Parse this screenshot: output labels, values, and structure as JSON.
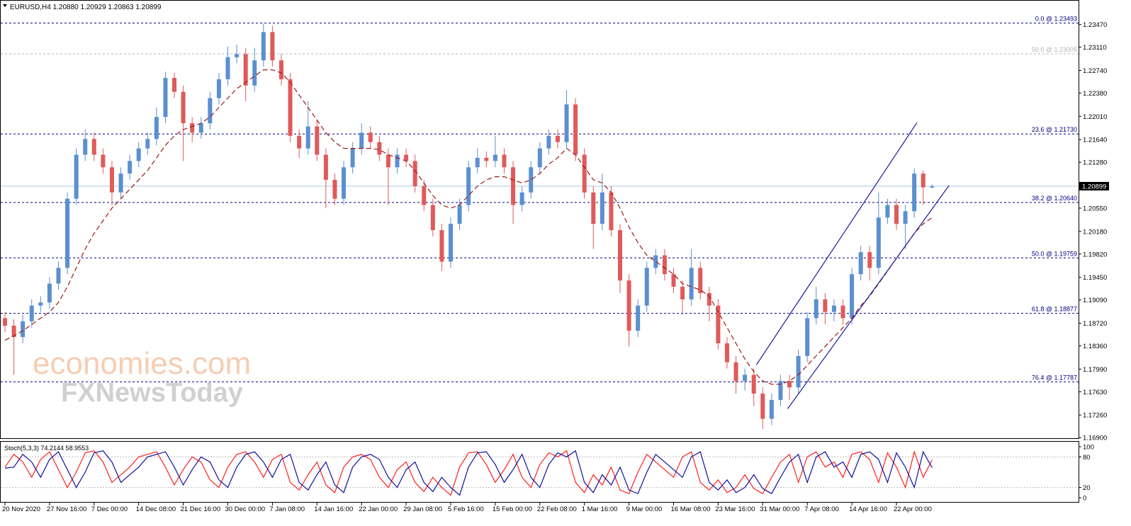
{
  "chart_data": [
    {
      "type": "candlestick",
      "title": "EURUSD,H4  1.20880 1.20929 1.20863 1.20899",
      "categories": [
        "20 Nov 2020",
        null,
        null,
        null,
        null,
        "27 Nov 16:00",
        null,
        null,
        null,
        null,
        "7 Dec 00:00",
        null,
        null,
        null,
        null,
        "14 Dec 08:00",
        null,
        null,
        null,
        null,
        "21 Dec 16:00",
        null,
        null,
        null,
        null,
        "30 Dec 00:00",
        null,
        null,
        null,
        null,
        "7 Jan 08:00",
        null,
        null,
        null,
        null,
        "14 Jan 16:00",
        null,
        null,
        null,
        null,
        "22 Jan 00:00",
        null,
        null,
        null,
        null,
        "29 Jan 08:00",
        null,
        null,
        null,
        null,
        "5 Feb 16:00",
        null,
        null,
        null,
        null,
        "15 Feb 00:00",
        null,
        null,
        null,
        null,
        "22 Feb 08:00",
        null,
        null,
        null,
        null,
        "1 Mar 16:00",
        null,
        null,
        null,
        null,
        "9 Mar 00:00",
        null,
        null,
        null,
        null,
        "16 Mar 08:00",
        null,
        null,
        null,
        null,
        "23 Mar 16:00",
        null,
        null,
        null,
        null,
        "31 Mar 00:00",
        null,
        null,
        null,
        null,
        "7 Apr 08:00",
        null,
        null,
        null,
        null,
        "14 Apr 16:00",
        null,
        null,
        null,
        null,
        "22 Apr 00:00",
        null,
        null,
        null,
        null
      ],
      "open": [
        1.188,
        1.1868,
        1.185,
        1.1875,
        1.19,
        1.1905,
        1.1935,
        1.196,
        1.207,
        1.214,
        1.2165,
        1.214,
        1.212,
        1.208,
        1.211,
        1.213,
        1.215,
        1.2165,
        1.22,
        1.2262,
        1.224,
        1.219,
        1.2175,
        1.219,
        1.223,
        1.226,
        1.2295,
        1.23,
        1.225,
        1.229,
        1.2335,
        1.229,
        1.226,
        1.217,
        1.215,
        1.2185,
        1.214,
        1.21,
        1.207,
        1.212,
        1.215,
        1.2175,
        1.216,
        1.214,
        1.212,
        1.214,
        1.213,
        1.209,
        1.206,
        1.202,
        1.197,
        1.203,
        1.206,
        1.212,
        1.2135,
        1.213,
        1.214,
        1.212,
        1.206,
        1.208,
        1.212,
        1.215,
        1.217,
        1.216,
        1.222,
        1.214,
        1.208,
        1.203,
        1.208,
        1.202,
        1.194,
        1.186,
        1.19,
        1.196,
        1.198,
        1.195,
        1.193,
        1.191,
        1.196,
        1.192,
        1.19,
        1.184,
        1.181,
        1.178,
        1.179,
        1.176,
        1.172,
        1.175,
        1.178,
        1.177,
        1.182,
        1.188,
        1.191,
        1.189,
        1.19,
        1.188,
        1.195,
        1.1985,
        1.196,
        1.204,
        1.206,
        1.203,
        1.205,
        1.211,
        1.2088
      ],
      "high": [
        1.189,
        1.1878,
        1.1885,
        1.191,
        1.1915,
        1.1945,
        1.197,
        1.208,
        1.215,
        1.218,
        1.2175,
        1.215,
        1.213,
        1.212,
        1.214,
        1.216,
        1.2175,
        1.2215,
        1.2272,
        1.227,
        1.225,
        1.22,
        1.22,
        1.224,
        1.227,
        1.2312,
        1.2315,
        1.231,
        1.231,
        1.2349,
        1.2345,
        1.23,
        1.227,
        1.218,
        1.2225,
        1.2195,
        1.215,
        1.211,
        1.213,
        1.216,
        1.219,
        1.2185,
        1.217,
        1.215,
        1.215,
        1.215,
        1.214,
        1.21,
        1.207,
        1.203,
        1.204,
        1.207,
        1.213,
        1.215,
        1.2145,
        1.217,
        1.215,
        1.213,
        1.209,
        1.213,
        1.216,
        1.218,
        1.218,
        1.2243,
        1.223,
        1.215,
        1.209,
        1.211,
        1.209,
        1.203,
        1.195,
        1.191,
        1.197,
        1.199,
        1.199,
        1.196,
        1.194,
        1.199,
        1.197,
        1.193,
        1.191,
        1.185,
        1.182,
        1.18,
        1.18,
        1.177,
        1.176,
        1.179,
        1.179,
        1.183,
        1.189,
        1.193,
        1.192,
        1.191,
        1.191,
        1.196,
        1.1995,
        1.1995,
        1.208,
        1.207,
        1.207,
        1.206,
        1.2118,
        1.2115,
        1.20929
      ],
      "low": [
        1.1858,
        1.179,
        1.184,
        1.1865,
        1.189,
        1.1895,
        1.1925,
        1.195,
        1.206,
        1.213,
        1.213,
        1.211,
        1.206,
        1.207,
        1.21,
        1.212,
        1.214,
        1.2155,
        1.219,
        1.223,
        1.213,
        1.216,
        1.2165,
        1.218,
        1.222,
        1.225,
        1.2285,
        1.2225,
        1.224,
        1.228,
        1.228,
        1.225,
        1.216,
        1.2135,
        1.214,
        1.213,
        1.2055,
        1.206,
        1.206,
        1.211,
        1.214,
        1.215,
        1.213,
        1.206,
        1.211,
        1.212,
        1.208,
        1.205,
        1.201,
        1.1955,
        1.196,
        1.202,
        1.205,
        1.211,
        1.212,
        1.212,
        1.211,
        1.203,
        1.205,
        1.207,
        1.211,
        1.214,
        1.215,
        1.215,
        1.213,
        1.207,
        1.199,
        1.202,
        1.201,
        1.192,
        1.1835,
        1.185,
        1.189,
        1.195,
        1.194,
        1.192,
        1.1885,
        1.19,
        1.191,
        1.1875,
        1.183,
        1.18,
        1.176,
        1.1765,
        1.174,
        1.1704,
        1.171,
        1.174,
        1.175,
        1.176,
        1.181,
        1.187,
        1.187,
        1.1875,
        1.187,
        1.187,
        1.194,
        1.194,
        1.195,
        1.203,
        1.202,
        1.199,
        1.204,
        1.206,
        1.20863
      ],
      "close": [
        1.1868,
        1.185,
        1.1875,
        1.19,
        1.1905,
        1.1935,
        1.196,
        1.207,
        1.214,
        1.2165,
        1.214,
        1.212,
        1.208,
        1.211,
        1.213,
        1.215,
        1.2165,
        1.22,
        1.2262,
        1.224,
        1.219,
        1.2175,
        1.219,
        1.223,
        1.226,
        1.2295,
        1.23,
        1.225,
        1.229,
        1.2335,
        1.229,
        1.226,
        1.217,
        1.215,
        1.2185,
        1.214,
        1.21,
        1.207,
        1.212,
        1.215,
        1.2175,
        1.216,
        1.214,
        1.212,
        1.214,
        1.213,
        1.209,
        1.206,
        1.202,
        1.197,
        1.203,
        1.206,
        1.212,
        1.2135,
        1.213,
        1.214,
        1.212,
        1.206,
        1.208,
        1.212,
        1.215,
        1.217,
        1.216,
        1.222,
        1.214,
        1.208,
        1.203,
        1.208,
        1.202,
        1.194,
        1.186,
        1.19,
        1.196,
        1.198,
        1.195,
        1.193,
        1.191,
        1.196,
        1.192,
        1.19,
        1.184,
        1.181,
        1.178,
        1.179,
        1.176,
        1.172,
        1.175,
        1.178,
        1.177,
        1.182,
        1.188,
        1.191,
        1.189,
        1.19,
        1.188,
        1.195,
        1.1985,
        1.196,
        1.204,
        1.206,
        1.203,
        1.205,
        1.211,
        1.2088,
        1.20899
      ],
      "up_color": "#5b8fd0",
      "down_color": "#e05a5a",
      "ma": {
        "color": "#9b1c1c",
        "values": [
          1.1845,
          1.1852,
          1.186,
          1.187,
          1.188,
          1.189,
          1.1905,
          1.193,
          1.196,
          1.199,
          1.2015,
          1.2035,
          1.2055,
          1.207,
          1.2085,
          1.21,
          1.2115,
          1.2135,
          1.2155,
          1.217,
          1.218,
          1.2185,
          1.219,
          1.22,
          1.2215,
          1.223,
          1.2245,
          1.2255,
          1.2265,
          1.2275,
          1.2275,
          1.227,
          1.2255,
          1.2235,
          1.2215,
          1.2195,
          1.2175,
          1.216,
          1.215,
          1.215,
          1.215,
          1.215,
          1.2148,
          1.214,
          1.2135,
          1.213,
          1.2115,
          1.2095,
          1.2075,
          1.206,
          1.2055,
          1.206,
          1.2075,
          1.209,
          1.21,
          1.2105,
          1.2105,
          1.21,
          1.2095,
          1.21,
          1.211,
          1.2125,
          1.2135,
          1.215,
          1.214,
          1.212,
          1.21,
          1.2095,
          1.208,
          1.2055,
          1.2025,
          1.2,
          1.198,
          1.197,
          1.196,
          1.195,
          1.1935,
          1.193,
          1.1925,
          1.1915,
          1.189,
          1.1865,
          1.184,
          1.1815,
          1.1795,
          1.178,
          1.1775,
          1.1775,
          1.178,
          1.179,
          1.1805,
          1.182,
          1.1835,
          1.185,
          1.1865,
          1.188,
          1.19,
          1.1915,
          1.1935,
          1.1955,
          1.1975,
          1.1995,
          1.2015,
          1.203,
          1.204
        ]
      },
      "ylim": [
        1.1688,
        1.2386
      ],
      "yticks": [
        {
          "value": 1.2347,
          "label": "1.23470"
        },
        {
          "value": 1.2311,
          "label": "1.23110"
        },
        {
          "value": 1.2274,
          "label": "1.22740"
        },
        {
          "value": 1.2238,
          "label": "1.22380"
        },
        {
          "value": 1.2201,
          "label": "1.22010"
        },
        {
          "value": 1.2164,
          "label": "1.21640"
        },
        {
          "value": 1.2128,
          "label": "1.21280"
        },
        {
          "value": 1.2055,
          "label": "1.20550"
        },
        {
          "value": 1.2018,
          "label": "1.20180"
        },
        {
          "value": 1.1982,
          "label": "1.19820"
        },
        {
          "value": 1.1945,
          "label": "1.19450"
        },
        {
          "value": 1.1909,
          "label": "1.19090"
        },
        {
          "value": 1.1872,
          "label": "1.18720"
        },
        {
          "value": 1.1836,
          "label": "1.18360"
        },
        {
          "value": 1.1799,
          "label": "1.17990"
        },
        {
          "value": 1.1763,
          "label": "1.17630"
        },
        {
          "value": 1.1726,
          "label": "1.17260"
        },
        {
          "value": 1.169,
          "label": "1.16900"
        }
      ],
      "levels": [
        {
          "value": 1.23493,
          "label": "0.0 @ 1.23493",
          "color": "#000080"
        },
        {
          "value": 1.23005,
          "label": "50.0 @ 1.23005",
          "color": "#b4b4b4"
        },
        {
          "value": 1.2173,
          "label": "23.6 @ 1.21730",
          "color": "#000080"
        },
        {
          "value": 1.2064,
          "label": "38.2 @ 1.20640",
          "color": "#000080"
        },
        {
          "value": 1.19759,
          "label": "50.0 @ 1.19759",
          "color": "#000080"
        },
        {
          "value": 1.18877,
          "label": "61.8 @ 1.18877",
          "color": "#000080"
        },
        {
          "value": 1.17787,
          "label": "76.4 @ 1.17787",
          "color": "#000080"
        }
      ],
      "last_price": {
        "value": 1.20899,
        "color": "#a8c8e8"
      },
      "channels": [
        {
          "x": [
            84.3,
            102.3
          ],
          "y": [
            1.1806,
            1.2191
          ],
          "color": "#1a1aa0"
        },
        {
          "x": [
            87.8,
            105.9
          ],
          "y": [
            1.1736,
            1.2091
          ],
          "color": "#1a1aa0"
        }
      ],
      "watermark": [
        "economies.com",
        "FXNewsToday"
      ]
    },
    {
      "type": "line",
      "title": "Stoch(5,3,3) 74.2144 58.9553",
      "series": [
        {
          "color": "#ff2020",
          "values": [
            60,
            85,
            70,
            40,
            75,
            90,
            55,
            20,
            50,
            88,
            92,
            70,
            30,
            45,
            60,
            80,
            85,
            90,
            60,
            25,
            55,
            80,
            70,
            35,
            20,
            60,
            85,
            90,
            70,
            40,
            75,
            85,
            30,
            15,
            45,
            70,
            25,
            10,
            60,
            80,
            85,
            75,
            40,
            20,
            55,
            70,
            30,
            12,
            40,
            20,
            5,
            60,
            88,
            90,
            65,
            30,
            55,
            85,
            40,
            20,
            65,
            88,
            80,
            92,
            30,
            10,
            45,
            25,
            60,
            15,
            8,
            50,
            85,
            70,
            55,
            40,
            80,
            90,
            30,
            15,
            35,
            10,
            20,
            45,
            18,
            8,
            40,
            70,
            85,
            30,
            80,
            90,
            60,
            70,
            40,
            85,
            90,
            75,
            30,
            88,
            60,
            20,
            90,
            40,
            74.2144
          ]
        },
        {
          "color": "#1010a0",
          "values": [
            58,
            60,
            85,
            70,
            40,
            75,
            90,
            55,
            20,
            50,
            88,
            92,
            70,
            30,
            45,
            60,
            80,
            85,
            90,
            60,
            25,
            55,
            80,
            70,
            35,
            20,
            60,
            85,
            90,
            70,
            40,
            75,
            85,
            30,
            15,
            45,
            70,
            25,
            10,
            60,
            80,
            85,
            75,
            40,
            20,
            55,
            70,
            30,
            12,
            40,
            20,
            5,
            60,
            88,
            90,
            65,
            30,
            55,
            85,
            40,
            20,
            65,
            88,
            80,
            92,
            30,
            10,
            45,
            25,
            60,
            15,
            8,
            50,
            85,
            70,
            55,
            40,
            80,
            90,
            30,
            15,
            35,
            10,
            20,
            45,
            18,
            8,
            40,
            70,
            85,
            30,
            80,
            90,
            60,
            70,
            40,
            85,
            90,
            75,
            30,
            88,
            60,
            20,
            90,
            58.9553
          ]
        }
      ],
      "ylim": [
        -9.7,
        109.7
      ],
      "yticks": [
        100,
        80,
        20,
        0
      ],
      "levels": [
        80,
        20
      ]
    }
  ]
}
